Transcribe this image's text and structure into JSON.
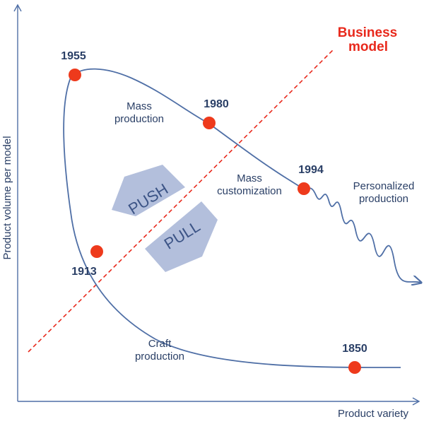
{
  "axes": {
    "x_label": "Product variety",
    "y_label": "Product volume per model"
  },
  "business_model": {
    "line1": "Business",
    "line2": "model",
    "color": "#e8291c"
  },
  "milestones": [
    {
      "year": "1955"
    },
    {
      "year": "1980"
    },
    {
      "year": "1994"
    },
    {
      "year": "1913"
    },
    {
      "year": "1850"
    }
  ],
  "eras": {
    "mass_production": [
      "Mass",
      "production"
    ],
    "mass_customization": [
      "Mass",
      "customization"
    ],
    "personalized_production": [
      "Personalized",
      "production"
    ],
    "craft_production": [
      "Craft",
      "production"
    ]
  },
  "arrows": {
    "push": "PUSH",
    "pull": "PULL"
  },
  "colors": {
    "curve": "#4f6fa6",
    "dot": "#ee3a1c",
    "text": "#2a3f66",
    "arrow_fill": "#b3bfdc"
  }
}
